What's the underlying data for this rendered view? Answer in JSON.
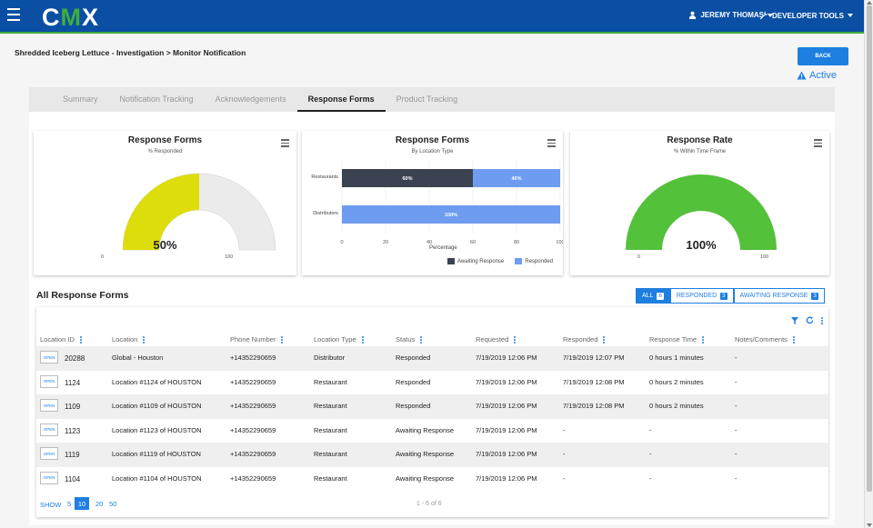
{
  "header": {
    "logo_left": "C",
    "logo_mid": "M",
    "logo_right": "X",
    "user_label": "JEREMY THOMAS",
    "devtools_label": "DEVELOPER TOOLS"
  },
  "breadcrumb": "Shredded Iceberg Lettuce - Investigation > Monitor Notification",
  "back_label": "BACK",
  "status_label": "Active",
  "tabs": [
    {
      "label": "Summary"
    },
    {
      "label": "Notification Tracking"
    },
    {
      "label": "Acknowledgements"
    },
    {
      "label": "Response Forms"
    },
    {
      "label": "Product Tracking"
    }
  ],
  "active_tab": "Response Forms",
  "cards": {
    "gauge1": {
      "title": "Response Forms",
      "subtitle": "% Responded",
      "value_label": "50%",
      "min_label": "0",
      "max_label": "100",
      "fill_color": "#dddd0c"
    },
    "bar": {
      "title": "Response Forms",
      "subtitle": "By Location Type",
      "xlabel": "Percentage",
      "legend": [
        "Awaiting Response",
        "Responded"
      ]
    },
    "gauge2": {
      "title": "Response Rate",
      "subtitle": "% Within Time Frame",
      "value_label": "100%",
      "min_label": "0",
      "max_label": "100",
      "fill_color": "#53c13a"
    }
  },
  "chart_data": [
    {
      "type": "pie",
      "title": "Response Forms",
      "subtitle": "% Responded",
      "value": 50,
      "min": 0,
      "max": 100
    },
    {
      "type": "bar",
      "title": "Response Forms",
      "subtitle": "By Location Type",
      "categories": [
        "Restaurants",
        "Distributors"
      ],
      "series": [
        {
          "name": "Awaiting Response",
          "values": [
            60,
            0
          ],
          "color": "#3b4252"
        },
        {
          "name": "Responded",
          "values": [
            40,
            100
          ],
          "color": "#6e9cf0"
        }
      ],
      "data_labels": [
        [
          "60%",
          "40%"
        ],
        [
          "",
          "100%"
        ]
      ],
      "xlabel": "Percentage",
      "xlim": [
        0,
        100
      ],
      "xticks": [
        "0",
        "20",
        "40",
        "60",
        "80",
        "100"
      ],
      "legend_position": "bottom-right"
    },
    {
      "type": "pie",
      "title": "Response Rate",
      "subtitle": "% Within Time Frame",
      "value": 100,
      "min": 0,
      "max": 100
    }
  ],
  "section_title": "All Response Forms",
  "filters": [
    {
      "label": "ALL",
      "count": "6"
    },
    {
      "label": "RESPONDED",
      "count": "3"
    },
    {
      "label": "AWAITING RESPONSE",
      "count": "3"
    }
  ],
  "table": {
    "columns": [
      "Location ID",
      "Location",
      "Phone Number",
      "Location Type",
      "Status",
      "Requested",
      "Responded",
      "Response Time",
      "Notes/Comments"
    ],
    "open_label": "OPEN",
    "rows": [
      {
        "id": "20288",
        "location": "Global - Houston",
        "phone": "+14352290659",
        "type": "Distributor",
        "status": "Responded",
        "requested": "7/19/2019 12:06 PM",
        "responded": "7/19/2019 12:07 PM",
        "time": "0 hours 1 minutes",
        "notes": "-"
      },
      {
        "id": "1124",
        "location": "Location #1124 of HOUSTON",
        "phone": "+14352290659",
        "type": "Restaurant",
        "status": "Responded",
        "requested": "7/19/2019 12:06 PM",
        "responded": "7/19/2019 12:08 PM",
        "time": "0 hours 2 minutes",
        "notes": "-"
      },
      {
        "id": "1109",
        "location": "Location #1109 of HOUSTON",
        "phone": "+14352290659",
        "type": "Restaurant",
        "status": "Responded",
        "requested": "7/19/2019 12:06 PM",
        "responded": "7/19/2019 12:08 PM",
        "time": "0 hours 2 minutes",
        "notes": "-"
      },
      {
        "id": "1123",
        "location": "Location #1123 of HOUSTON",
        "phone": "+14352290659",
        "type": "Restaurant",
        "status": "Awaiting Response",
        "requested": "7/19/2019 12:06 PM",
        "responded": "-",
        "time": "-",
        "notes": "-"
      },
      {
        "id": "1119",
        "location": "Location #1119 of HOUSTON",
        "phone": "+14352290659",
        "type": "Restaurant",
        "status": "Awaiting Response",
        "requested": "7/19/2019 12:06 PM",
        "responded": "-",
        "time": "-",
        "notes": "-"
      },
      {
        "id": "1104",
        "location": "Location #1104 of HOUSTON",
        "phone": "+14352290659",
        "type": "Restaurant",
        "status": "Awaiting Response",
        "requested": "7/19/2019 12:06 PM",
        "responded": "-",
        "time": "-",
        "notes": "-"
      }
    ]
  },
  "pagination": {
    "show_label": "SHOW",
    "sizes": [
      "5",
      "10",
      "20",
      "50"
    ],
    "selected": "10",
    "summary": "1 - 6 of 6"
  },
  "colors": {
    "brand_blue": "#0a4fa3",
    "accent_blue": "#1e7fe0",
    "brand_green": "#3fae3a"
  },
  "icons": {
    "menu": "hamburger-icon",
    "user": "user-icon",
    "tools": "wrench-icon",
    "warning": "warning-triangle-icon",
    "filter": "filter-icon",
    "refresh": "refresh-icon",
    "more": "kebab-icon"
  }
}
